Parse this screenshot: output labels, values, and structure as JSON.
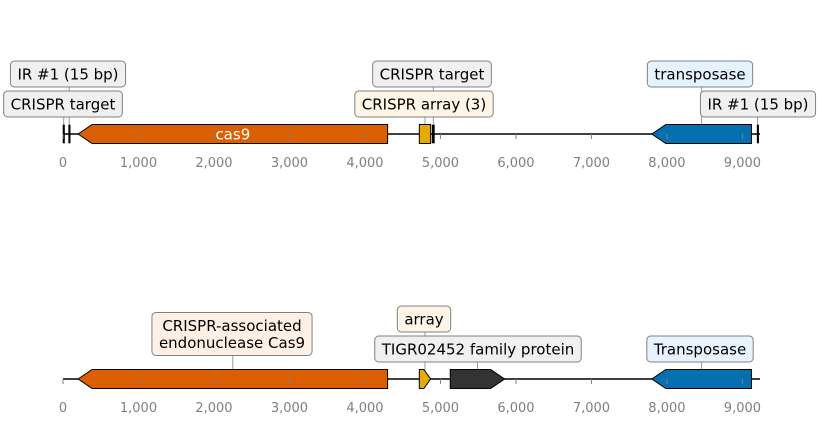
{
  "tick_labels": [
    "0",
    "1,000",
    "2,000",
    "3,000",
    "4,000",
    "5,000",
    "6,000",
    "7,000",
    "8,000",
    "9,000"
  ],
  "tick_values": [
    0,
    1000,
    2000,
    3000,
    4000,
    5000,
    6000,
    7000,
    8000,
    9000
  ],
  "sequence_length": 9220,
  "tracks": [
    {
      "features": [
        {
          "start": 0,
          "end": 20,
          "strand": 0,
          "color": "#000000",
          "kind": "mark"
        },
        {
          "start": 75,
          "end": 90,
          "strand": 0,
          "color": "#000000",
          "kind": "mark"
        },
        {
          "start": 200,
          "end": 4300,
          "strand": -1,
          "color": "#d95f02",
          "kind": "gene",
          "inner_label": "cas9"
        },
        {
          "start": 4720,
          "end": 4870,
          "strand": 0,
          "color": "#e6ab02",
          "kind": "box"
        },
        {
          "start": 4890,
          "end": 4920,
          "strand": 0,
          "color": "#000000",
          "kind": "mark"
        },
        {
          "start": 7800,
          "end": 9120,
          "strand": -1,
          "color": "#0570b0",
          "kind": "gene"
        },
        {
          "start": 9195,
          "end": 9210,
          "strand": 0,
          "color": "#000000",
          "kind": "mark"
        }
      ],
      "annotations": [
        {
          "text": "IR #1 (15 bp)",
          "anchor": 82,
          "fill": "#f0f0f0"
        },
        {
          "text": "CRISPR target",
          "anchor": 10,
          "fill": "#f0f0f0"
        },
        {
          "text": "CRISPR target",
          "anchor": 4905,
          "fill": "#f0f0f0"
        },
        {
          "text": "CRISPR array (3)",
          "anchor": 4795,
          "fill": "#fff5e6"
        },
        {
          "text": "transposase",
          "anchor": 8460,
          "fill": "#e6f3ff"
        },
        {
          "text": "IR #1 (15 bp)",
          "anchor": 9202,
          "fill": "#f0f0f0"
        }
      ]
    },
    {
      "features": [
        {
          "start": 200,
          "end": 4300,
          "strand": -1,
          "color": "#d95f02",
          "kind": "gene"
        },
        {
          "start": 4720,
          "end": 4870,
          "strand": 1,
          "color": "#e6ab02",
          "kind": "gene"
        },
        {
          "start": 5130,
          "end": 5850,
          "strand": 1,
          "color": "#333333",
          "kind": "gene"
        },
        {
          "start": 7800,
          "end": 9120,
          "strand": -1,
          "color": "#0570b0",
          "kind": "gene"
        }
      ],
      "annotations": [
        {
          "text": "CRISPR-associated\nendonuclease Cas9",
          "anchor": 2250,
          "fill": "#fff0e6"
        },
        {
          "text": "array",
          "anchor": 4795,
          "fill": "#fff5e6"
        },
        {
          "text": "TIGR02452 family protein",
          "anchor": 5490,
          "fill": "#f0f0f0"
        },
        {
          "text": "Transposase",
          "anchor": 8460,
          "fill": "#e6f3ff"
        }
      ]
    }
  ]
}
